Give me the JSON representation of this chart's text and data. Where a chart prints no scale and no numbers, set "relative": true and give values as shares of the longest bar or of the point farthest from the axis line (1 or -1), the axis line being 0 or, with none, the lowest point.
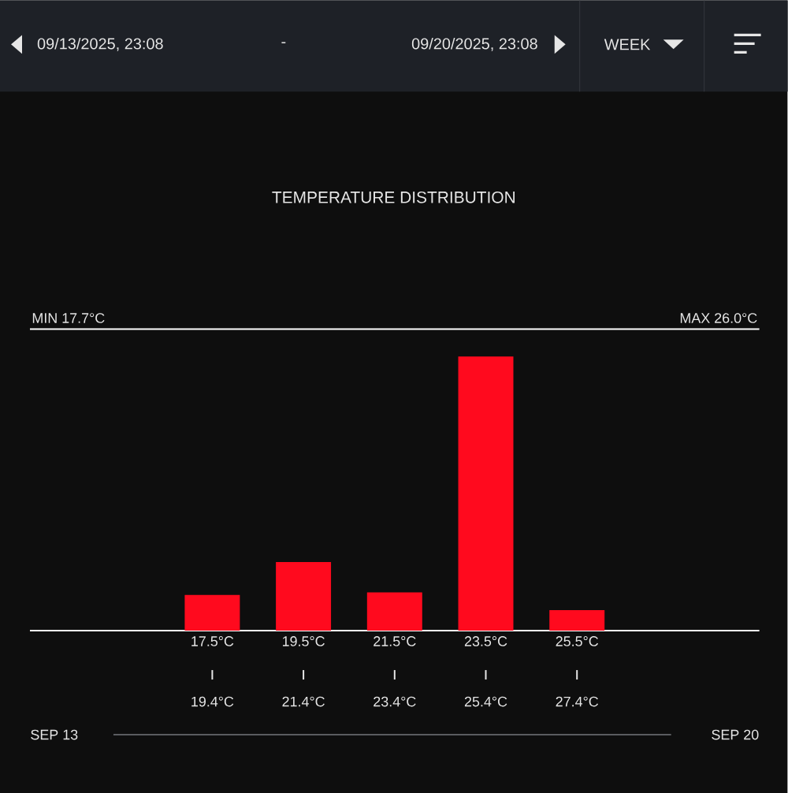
{
  "chart_data": {
    "type": "bar",
    "title": "TEMPERATURE DISTRIBUTION",
    "categories": [
      "17.5°C",
      "19.5°C",
      "21.5°C",
      "23.5°C",
      "25.5°C"
    ],
    "values": [
      0.13,
      0.25,
      0.14,
      1,
      0.075
    ],
    "color": "#ff0a1e",
    "relative": true,
    "ref_lines": [
      {
        "axis": "y",
        "value": 1.1,
        "color": "#ffffff"
      }
    ],
    "annotations": [
      "19.4°C",
      "21.4°C",
      "23.4°C",
      "25.4°C",
      "27.4°C",
      "MIN 17.7°C",
      "MAX 26.0°C",
      "SEP 13",
      "SEP 20",
      "09/13/2025, 23:08",
      "-",
      "09/20/2025, 23:08",
      "WEEK"
    ]
  }
}
